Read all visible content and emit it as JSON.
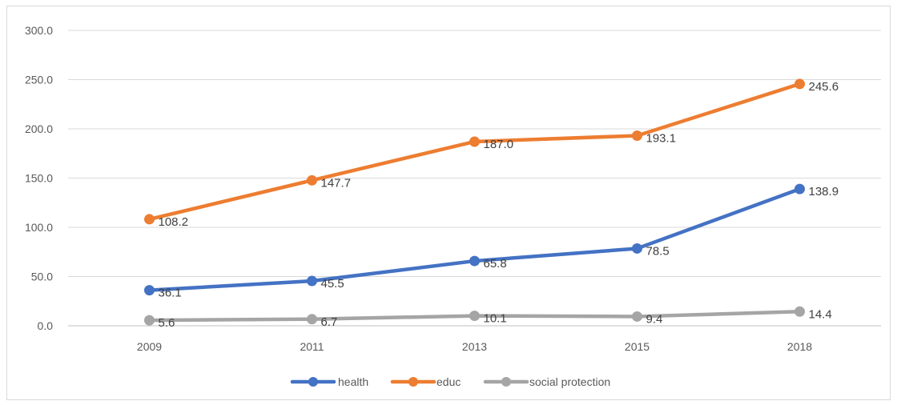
{
  "chart_data": {
    "type": "line",
    "categories": [
      "2009",
      "2011",
      "2013",
      "2015",
      "2018"
    ],
    "ylim": [
      0,
      300
    ],
    "y_ticks": [
      "0.0",
      "50.0",
      "100.0",
      "150.0",
      "200.0",
      "250.0",
      "300.0"
    ],
    "grid": "horizontal",
    "legend_position": "bottom",
    "series": [
      {
        "name": "health",
        "color": "#4472c4",
        "values": [
          36.1,
          45.5,
          65.8,
          78.5,
          138.9
        ],
        "labels": [
          "36.1",
          "45.5",
          "65.8",
          "78.5",
          "138.9"
        ]
      },
      {
        "name": "educ",
        "color": "#ed7d31",
        "values": [
          108.2,
          147.7,
          187.0,
          193.1,
          245.6
        ],
        "labels": [
          "108.2",
          "147.7",
          "187.0",
          "193.1",
          "245.6"
        ]
      },
      {
        "name": "social protection",
        "color": "#a5a5a5",
        "values": [
          5.6,
          6.7,
          10.1,
          9.4,
          14.4
        ],
        "labels": [
          "5.6",
          "6.7",
          "10.1",
          "9.4",
          "14.4"
        ]
      }
    ]
  }
}
